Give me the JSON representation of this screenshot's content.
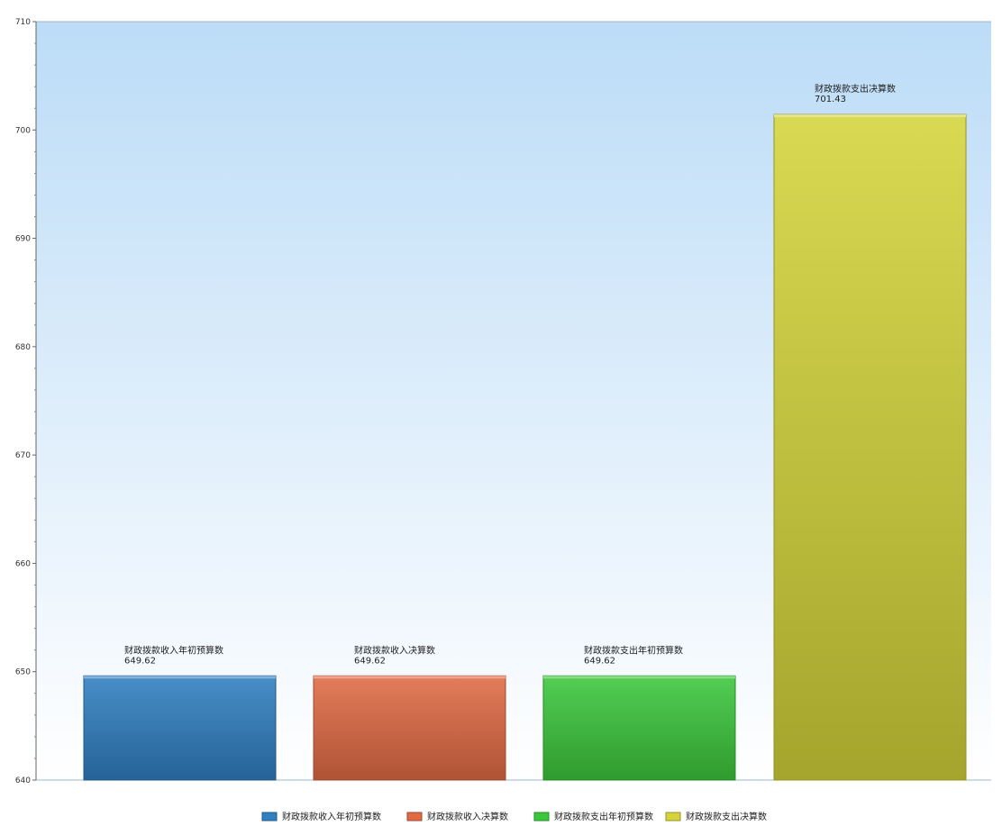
{
  "chart_data": {
    "type": "bar",
    "categories": [
      "财政拨款收入年初预算数",
      "财政拨款收入决算数",
      "财政拨款支出年初预算数",
      "财政拨款支出决算数"
    ],
    "values": [
      649.62,
      649.62,
      649.62,
      701.43
    ],
    "data_labels": [
      {
        "name": "财政拨款收入年初预算数",
        "value": "649.62"
      },
      {
        "name": "财政拨款收入决算数",
        "value": "649.62"
      },
      {
        "name": "财政拨款支出年初预算数",
        "value": "649.62"
      },
      {
        "name": "财政拨款支出决算数",
        "value": "701.43"
      }
    ],
    "ylim": [
      640,
      710
    ],
    "yticks": [
      "640",
      "650",
      "660",
      "670",
      "680",
      "690",
      "700",
      "710"
    ],
    "grid": false,
    "legend_position": "bottom-center",
    "colors": [
      "#2f7fc1",
      "#e06a44",
      "#3bc73b",
      "#d4d43a"
    ]
  }
}
